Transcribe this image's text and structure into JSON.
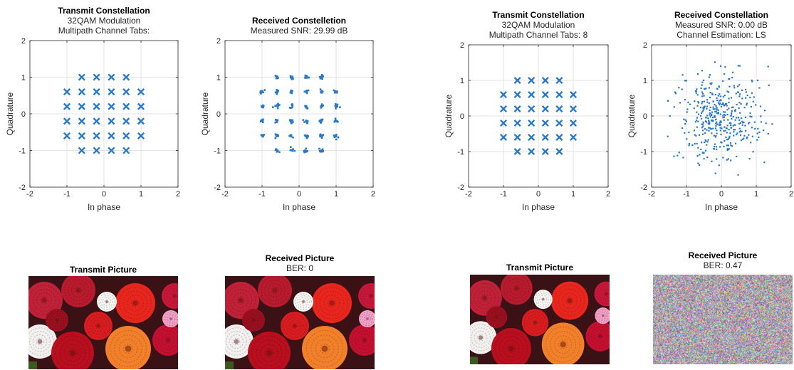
{
  "colors": {
    "marker": "#2a78c8",
    "grid": "#e3e3e3",
    "axis": "#262626"
  },
  "chart_data": [
    {
      "type": "scatter",
      "title": "Transmit Constellation",
      "subtitle_lines": [
        "32QAM Modulation",
        "Multipath Channel Tabs:"
      ],
      "xlabel": "In phase",
      "ylabel": "Quadrature",
      "xlim": [
        -2,
        2
      ],
      "ylim": [
        -2,
        2
      ],
      "xticks": [
        "-2",
        "-1",
        "0",
        "1",
        "2"
      ],
      "yticks": [
        "-2",
        "-1",
        "0",
        "1",
        "2"
      ],
      "grid": true,
      "marker": "x",
      "points": [
        [
          -0.6,
          1
        ],
        [
          -0.2,
          1
        ],
        [
          0.2,
          1
        ],
        [
          0.6,
          1
        ],
        [
          -1,
          0.6
        ],
        [
          -0.6,
          0.6
        ],
        [
          -0.2,
          0.6
        ],
        [
          0.2,
          0.6
        ],
        [
          0.6,
          0.6
        ],
        [
          1,
          0.6
        ],
        [
          -1,
          0.2
        ],
        [
          -0.6,
          0.2
        ],
        [
          -0.2,
          0.2
        ],
        [
          0.2,
          0.2
        ],
        [
          0.6,
          0.2
        ],
        [
          1,
          0.2
        ],
        [
          -1,
          -0.2
        ],
        [
          -0.6,
          -0.2
        ],
        [
          -0.2,
          -0.2
        ],
        [
          0.2,
          -0.2
        ],
        [
          0.6,
          -0.2
        ],
        [
          1,
          -0.2
        ],
        [
          -1,
          -0.6
        ],
        [
          -0.6,
          -0.6
        ],
        [
          -0.2,
          -0.6
        ],
        [
          0.2,
          -0.6
        ],
        [
          0.6,
          -0.6
        ],
        [
          1,
          -0.6
        ],
        [
          -0.6,
          -1
        ],
        [
          -0.2,
          -1
        ],
        [
          0.2,
          -1
        ],
        [
          0.6,
          -1
        ]
      ]
    },
    {
      "type": "scatter",
      "title": "Received Constelletion",
      "subtitle_lines": [
        "Measured SNR: 29.99 dB"
      ],
      "xlabel": "In phase",
      "ylabel": "Quadrature",
      "xlim": [
        -2,
        2
      ],
      "ylim": [
        -2,
        2
      ],
      "xticks": [
        "-2",
        "-1",
        "0",
        "1",
        "2"
      ],
      "yticks": [
        "-2",
        "-1",
        "0",
        "1",
        "2"
      ],
      "grid": true,
      "marker": "dot-cluster",
      "spread": 0.03,
      "points": [
        [
          -0.6,
          1
        ],
        [
          -0.2,
          1
        ],
        [
          0.2,
          1
        ],
        [
          0.6,
          1
        ],
        [
          -1,
          0.6
        ],
        [
          -0.6,
          0.6
        ],
        [
          -0.2,
          0.6
        ],
        [
          0.2,
          0.6
        ],
        [
          0.6,
          0.6
        ],
        [
          1,
          0.6
        ],
        [
          -1,
          0.2
        ],
        [
          -0.6,
          0.2
        ],
        [
          -0.2,
          0.2
        ],
        [
          0.2,
          0.2
        ],
        [
          0.6,
          0.2
        ],
        [
          1,
          0.2
        ],
        [
          -1,
          -0.2
        ],
        [
          -0.6,
          -0.2
        ],
        [
          -0.2,
          -0.2
        ],
        [
          0.2,
          -0.2
        ],
        [
          0.6,
          -0.2
        ],
        [
          1,
          -0.2
        ],
        [
          -1,
          -0.6
        ],
        [
          -0.6,
          -0.6
        ],
        [
          -0.2,
          -0.6
        ],
        [
          0.2,
          -0.6
        ],
        [
          0.6,
          -0.6
        ],
        [
          1,
          -0.6
        ],
        [
          -0.6,
          -1
        ],
        [
          -0.2,
          -1
        ],
        [
          0.2,
          -1
        ],
        [
          0.6,
          -1
        ]
      ]
    },
    {
      "type": "scatter",
      "title": "Transmit Constellation",
      "subtitle_lines": [
        "32QAM Modulation",
        "Multipath Channel Tabs: 8"
      ],
      "xlabel": "In phase",
      "ylabel": "Quadrature",
      "xlim": [
        -2,
        2
      ],
      "ylim": [
        -2,
        2
      ],
      "xticks": [
        "-2",
        "-1",
        "0",
        "1",
        "2"
      ],
      "yticks": [
        "-2",
        "-1",
        "0",
        "1",
        "2"
      ],
      "grid": true,
      "marker": "x",
      "points": [
        [
          -0.6,
          1
        ],
        [
          -0.2,
          1
        ],
        [
          0.2,
          1
        ],
        [
          0.6,
          1
        ],
        [
          -1,
          0.6
        ],
        [
          -0.6,
          0.6
        ],
        [
          -0.2,
          0.6
        ],
        [
          0.2,
          0.6
        ],
        [
          0.6,
          0.6
        ],
        [
          1,
          0.6
        ],
        [
          -1,
          0.2
        ],
        [
          -0.6,
          0.2
        ],
        [
          -0.2,
          0.2
        ],
        [
          0.2,
          0.2
        ],
        [
          0.6,
          0.2
        ],
        [
          1,
          0.2
        ],
        [
          -1,
          -0.2
        ],
        [
          -0.6,
          -0.2
        ],
        [
          -0.2,
          -0.2
        ],
        [
          0.2,
          -0.2
        ],
        [
          0.6,
          -0.2
        ],
        [
          1,
          -0.2
        ],
        [
          -1,
          -0.6
        ],
        [
          -0.6,
          -0.6
        ],
        [
          -0.2,
          -0.6
        ],
        [
          0.2,
          -0.6
        ],
        [
          0.6,
          -0.6
        ],
        [
          1,
          -0.6
        ],
        [
          -0.6,
          -1
        ],
        [
          -0.2,
          -1
        ],
        [
          0.2,
          -1
        ],
        [
          0.6,
          -1
        ]
      ]
    },
    {
      "type": "scatter",
      "title": "Received Constellation",
      "subtitle_lines": [
        "Measured SNR: 0.00 dB",
        "Channel Estimation: LS"
      ],
      "xlabel": "In phase",
      "ylabel": "Quadrature",
      "xlim": [
        -2,
        2
      ],
      "ylim": [
        -2,
        2
      ],
      "xticks": [
        "-2",
        "-1",
        "0",
        "1",
        "2"
      ],
      "yticks": [
        "-2",
        "-1",
        "0",
        "1",
        "2"
      ],
      "grid": true,
      "marker": "noise-cloud",
      "noise_points": 420,
      "noise_sigma": 0.6
    }
  ],
  "pictures": [
    {
      "title_lines": [
        "Transmit Picture"
      ],
      "kind": "flowers"
    },
    {
      "title_lines": [
        "Received Picture",
        "BER: 0"
      ],
      "kind": "flowers"
    },
    {
      "title_lines": [
        "Transmit Picture"
      ],
      "kind": "flowers"
    },
    {
      "title_lines": [
        "Received Picture",
        "BER: 0.47"
      ],
      "kind": "noise"
    }
  ]
}
